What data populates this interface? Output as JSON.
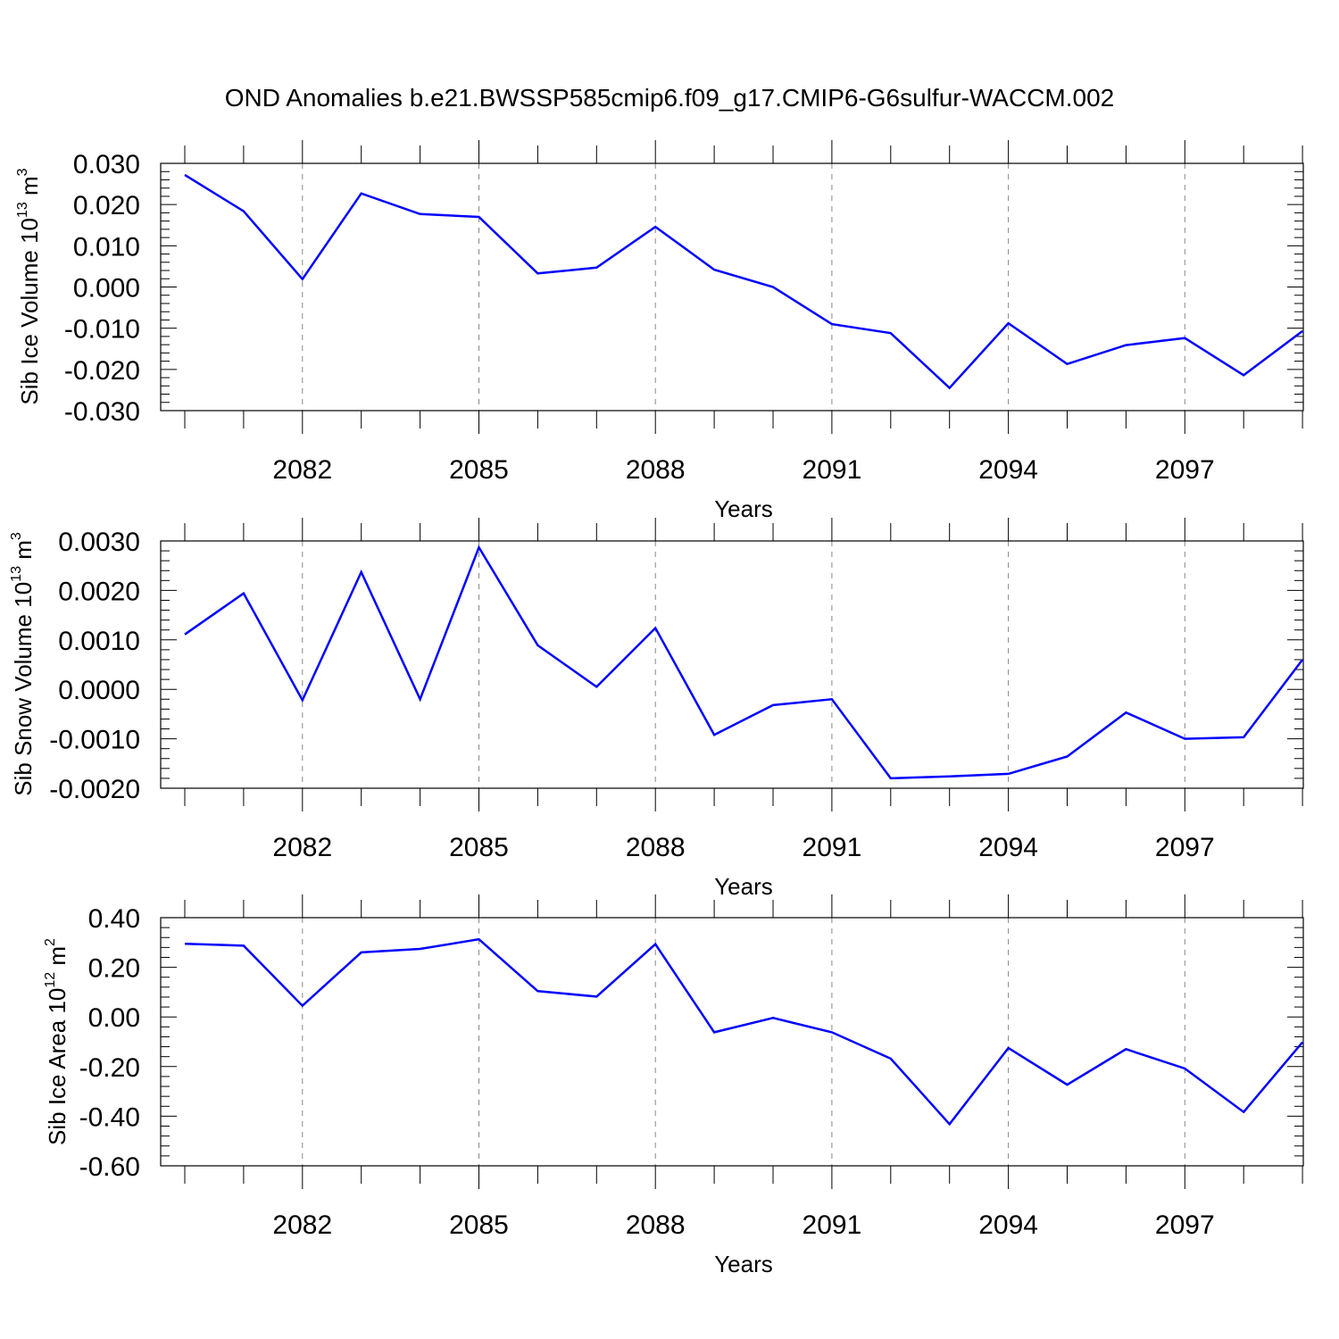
{
  "title": "OND Anomalies b.e21.BWSSP585cmip6.f09_g17.CMIP6-G6sulfur-WACCM.002",
  "line_color": "#0000ff",
  "chart_data": [
    {
      "type": "line",
      "ylabel_text": "Sib Ice Volume 10",
      "ylabel_exp": "13",
      "ylabel_unit": "m",
      "ylabel_unit_exp": "3",
      "xlabel": "Years",
      "xlim": [
        2080,
        2099
      ],
      "ylim": [
        -0.03,
        0.03
      ],
      "yticks": [
        "0.030",
        "0.020",
        "0.010",
        "0.000",
        "-0.010",
        "-0.020",
        "-0.030"
      ],
      "xticks": [
        "2082",
        "2085",
        "2088",
        "2091",
        "2094",
        "2097"
      ],
      "grid": "x dashed",
      "x": [
        2080,
        2081,
        2082,
        2083,
        2084,
        2085,
        2086,
        2087,
        2088,
        2089,
        2090,
        2091,
        2092,
        2093,
        2094,
        2095,
        2096,
        2097,
        2098,
        2099
      ],
      "series": [
        {
          "values": [
            0.0272,
            0.0184,
            0.0019,
            0.0227,
            0.0177,
            0.017,
            0.0033,
            0.0047,
            0.0146,
            0.0042,
            0.0,
            -0.009,
            -0.0112,
            -0.0245,
            -0.0088,
            -0.0187,
            -0.0141,
            -0.0124,
            -0.0214,
            -0.0107
          ]
        }
      ]
    },
    {
      "type": "line",
      "ylabel_text": "Sib Snow Volume 10",
      "ylabel_exp": "13",
      "ylabel_unit": "m",
      "ylabel_unit_exp": "3",
      "xlabel": "Years",
      "xlim": [
        2080,
        2099
      ],
      "ylim": [
        -0.002,
        0.003
      ],
      "yticks": [
        "0.0030",
        "0.0020",
        "0.0010",
        "0.0000",
        "-0.0010",
        "-0.0020"
      ],
      "xticks": [
        "2082",
        "2085",
        "2088",
        "2091",
        "2094",
        "2097"
      ],
      "grid": "x dashed",
      "x": [
        2080,
        2081,
        2082,
        2083,
        2084,
        2085,
        2086,
        2087,
        2088,
        2089,
        2090,
        2091,
        2092,
        2093,
        2094,
        2095,
        2096,
        2097,
        2098,
        2099
      ],
      "series": [
        {
          "values": [
            0.00111,
            0.00194,
            -0.00022,
            0.00237,
            -0.0002,
            0.00287,
            0.00089,
            5e-05,
            0.00124,
            -0.00092,
            -0.00032,
            -0.0002,
            -0.0018,
            -0.00176,
            -0.00171,
            -0.00136,
            -0.00047,
            -0.001,
            -0.00097,
            0.0006
          ]
        }
      ]
    },
    {
      "type": "line",
      "ylabel_text": "Sib Ice Area 10",
      "ylabel_exp": "12",
      "ylabel_unit": "m",
      "ylabel_unit_exp": "2",
      "xlabel": "Years",
      "xlim": [
        2080,
        2099
      ],
      "ylim": [
        -0.6,
        0.4
      ],
      "yticks": [
        "0.40",
        "0.20",
        "0.00",
        "-0.20",
        "-0.40",
        "-0.60"
      ],
      "xticks": [
        "2082",
        "2085",
        "2088",
        "2091",
        "2094",
        "2097"
      ],
      "grid": "x dashed",
      "x": [
        2080,
        2081,
        2082,
        2083,
        2084,
        2085,
        2086,
        2087,
        2088,
        2089,
        2090,
        2091,
        2092,
        2093,
        2094,
        2095,
        2096,
        2097,
        2098,
        2099
      ],
      "series": [
        {
          "values": [
            0.295,
            0.287,
            0.045,
            0.26,
            0.274,
            0.313,
            0.104,
            0.082,
            0.293,
            -0.062,
            -0.004,
            -0.062,
            -0.168,
            -0.432,
            -0.125,
            -0.273,
            -0.13,
            -0.208,
            -0.383,
            -0.102
          ]
        }
      ]
    }
  ]
}
